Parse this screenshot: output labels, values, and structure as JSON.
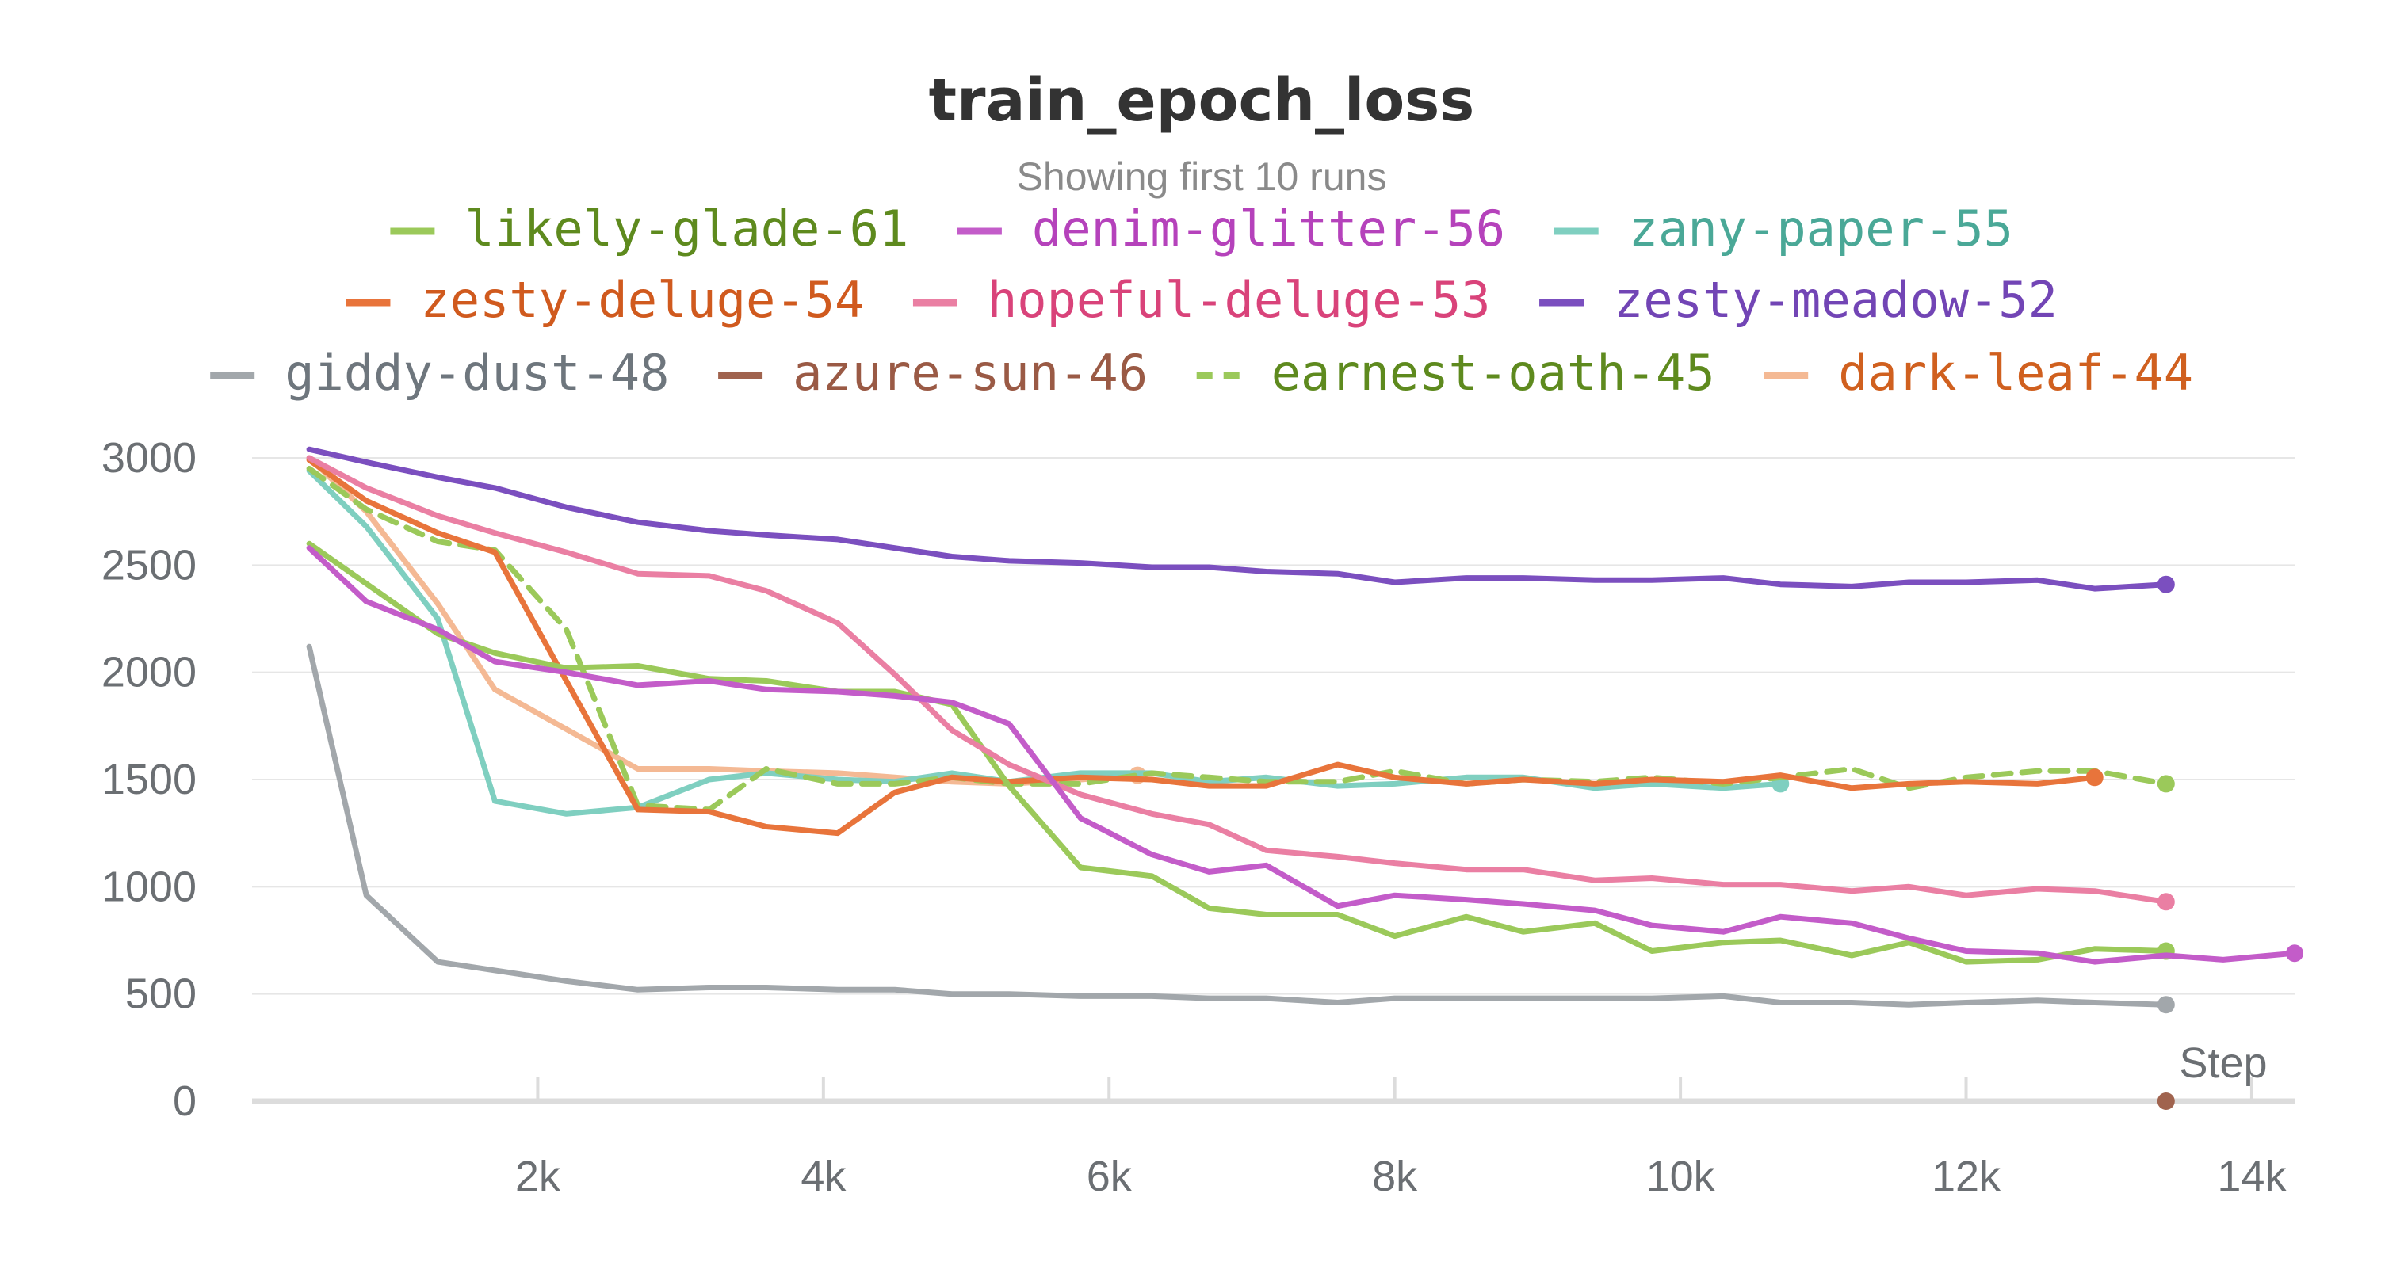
{
  "chart_data": {
    "type": "line",
    "title": "train_epoch_loss",
    "subtitle": "Showing first 10 runs",
    "xlabel": "Step",
    "ylabel": "",
    "xlim": [
      0,
      14300
    ],
    "ylim": [
      0,
      3000
    ],
    "x_ticks": [
      "2k",
      "4k",
      "6k",
      "8k",
      "10k",
      "12k",
      "14k"
    ],
    "x_tick_values": [
      2000,
      4000,
      6000,
      8000,
      10000,
      12000,
      14000
    ],
    "y_ticks": [
      "0",
      "500",
      "1000",
      "1500",
      "2000",
      "2500",
      "3000"
    ],
    "y_tick_values": [
      0,
      500,
      1000,
      1500,
      2000,
      2500,
      3000
    ],
    "grid": true,
    "legend_placement": "top",
    "series": [
      {
        "name": "likely-glade-61",
        "color": "#9bc95a",
        "text_color": "#5e8a1e",
        "dash": false,
        "end_marker": true,
        "x": [
          400,
          1300,
          1700,
          2200,
          2700,
          3200,
          3600,
          4100,
          4500,
          4900,
          5300,
          5800,
          6300,
          6700,
          7100,
          7600,
          8000,
          8500,
          8900,
          9400,
          9800,
          10300,
          10700,
          11200,
          11600,
          12000,
          12500,
          12900,
          13400
        ],
        "y": [
          2600,
          2180,
          2090,
          2020,
          2030,
          1970,
          1960,
          1910,
          1910,
          1850,
          1470,
          1090,
          1050,
          900,
          870,
          870,
          770,
          860,
          790,
          830,
          700,
          740,
          750,
          680,
          740,
          650,
          660,
          710,
          700
        ]
      },
      {
        "name": "denim-glitter-56",
        "color": "#c35cc9",
        "text_color": "#b542bb",
        "dash": false,
        "end_marker": true,
        "x": [
          400,
          800,
          1300,
          1700,
          2200,
          2700,
          3200,
          3600,
          4100,
          4500,
          4900,
          5300,
          5800,
          6300,
          6700,
          7100,
          7600,
          8000,
          8500,
          8900,
          9400,
          9800,
          10300,
          10700,
          11200,
          11600,
          12000,
          12500,
          12900,
          13400,
          13800,
          14300
        ],
        "y": [
          2580,
          2330,
          2200,
          2050,
          2000,
          1940,
          1960,
          1920,
          1910,
          1890,
          1860,
          1760,
          1320,
          1150,
          1070,
          1100,
          910,
          960,
          940,
          920,
          890,
          820,
          790,
          860,
          830,
          760,
          700,
          690,
          650,
          680,
          660,
          690
        ]
      },
      {
        "name": "zany-paper-55",
        "color": "#7fcfc0",
        "text_color": "#4aa897",
        "dash": false,
        "end_marker": true,
        "x": [
          400,
          800,
          1300,
          1700,
          2200,
          2700,
          3200,
          3600,
          4100,
          4500,
          4900,
          5300,
          5800,
          6300,
          6700,
          7100,
          7600,
          8000,
          8500,
          8900,
          9400,
          9800,
          10300,
          10700
        ],
        "y": [
          2940,
          2680,
          2250,
          1400,
          1340,
          1370,
          1500,
          1530,
          1500,
          1490,
          1530,
          1490,
          1530,
          1530,
          1490,
          1510,
          1470,
          1480,
          1510,
          1510,
          1460,
          1480,
          1460,
          1480
        ]
      },
      {
        "name": "zesty-deluge-54",
        "color": "#e8743b",
        "text_color": "#d05a1e",
        "dash": false,
        "end_marker": true,
        "x": [
          400,
          800,
          1300,
          1700,
          2700,
          3200,
          3600,
          4100,
          4500,
          4900,
          5300,
          5800,
          6300,
          6700,
          7100,
          7600,
          8000,
          8500,
          8900,
          9400,
          9800,
          10300,
          10700,
          11200,
          11600,
          12000,
          12500,
          12900
        ],
        "y": [
          2990,
          2800,
          2650,
          2560,
          1360,
          1350,
          1280,
          1250,
          1440,
          1510,
          1490,
          1510,
          1500,
          1470,
          1470,
          1570,
          1510,
          1480,
          1500,
          1480,
          1500,
          1490,
          1520,
          1460,
          1480,
          1490,
          1480,
          1510
        ]
      },
      {
        "name": "hopeful-deluge-53",
        "color": "#ea7fa3",
        "text_color": "#d9437a",
        "dash": false,
        "end_marker": true,
        "x": [
          400,
          800,
          1300,
          1700,
          2200,
          2700,
          3200,
          3600,
          4100,
          4500,
          4900,
          5300,
          5800,
          6300,
          6700,
          7100,
          7600,
          8000,
          8500,
          8900,
          9400,
          9800,
          10300,
          10700,
          11200,
          11600,
          12000,
          12500,
          12900,
          13400
        ],
        "y": [
          3000,
          2860,
          2730,
          2650,
          2560,
          2460,
          2450,
          2380,
          2230,
          1990,
          1730,
          1570,
          1430,
          1340,
          1290,
          1170,
          1140,
          1110,
          1080,
          1080,
          1030,
          1040,
          1010,
          1010,
          980,
          1000,
          960,
          990,
          980,
          930
        ]
      },
      {
        "name": "zesty-meadow-52",
        "color": "#7b4fbf",
        "text_color": "#7245b5",
        "dash": false,
        "end_marker": true,
        "x": [
          400,
          800,
          1300,
          1700,
          2200,
          2700,
          3200,
          3600,
          4100,
          4500,
          4900,
          5300,
          5800,
          6300,
          6700,
          7100,
          7600,
          8000,
          8500,
          8900,
          9400,
          9800,
          10300,
          10700,
          11200,
          11600,
          12000,
          12500,
          12900,
          13400
        ],
        "y": [
          3040,
          2980,
          2910,
          2860,
          2770,
          2700,
          2660,
          2640,
          2620,
          2580,
          2540,
          2520,
          2510,
          2490,
          2490,
          2470,
          2460,
          2420,
          2440,
          2440,
          2430,
          2430,
          2440,
          2410,
          2400,
          2420,
          2420,
          2430,
          2390,
          2410
        ]
      },
      {
        "name": "giddy-dust-48",
        "color": "#a2a7ab",
        "text_color": "#6e767d",
        "dash": false,
        "end_marker": true,
        "x": [
          400,
          800,
          1300,
          1700,
          2200,
          2700,
          3200,
          3600,
          4100,
          4500,
          4900,
          5300,
          5800,
          6300,
          6700,
          7100,
          7600,
          8000,
          8500,
          8900,
          9400,
          9800,
          10300,
          10700,
          11200,
          11600,
          12000,
          12500,
          12900,
          13400
        ],
        "y": [
          2120,
          960,
          650,
          610,
          560,
          520,
          530,
          530,
          520,
          520,
          500,
          500,
          490,
          490,
          480,
          480,
          460,
          480,
          480,
          480,
          480,
          480,
          490,
          460,
          460,
          450,
          460,
          470,
          460,
          450
        ]
      },
      {
        "name": "azure-sun-46",
        "color": "#a0634e",
        "text_color": "#9a5a45",
        "dash": false,
        "end_marker": true,
        "x": [
          13400
        ],
        "y": [
          0
        ]
      },
      {
        "name": "earnest-oath-45",
        "color": "#9bc95a",
        "text_color": "#5e8a1e",
        "dash": true,
        "end_marker": true,
        "x": [
          400,
          800,
          1300,
          1700,
          2200,
          2700,
          3200,
          3600,
          4100,
          4500,
          4900,
          5300,
          5800,
          6300,
          6700,
          7100,
          7600,
          8000,
          8500,
          8900,
          9400,
          9800,
          10300,
          10700,
          11200,
          11600,
          12000,
          12500,
          12900,
          13400
        ],
        "y": [
          2950,
          2760,
          2610,
          2570,
          2200,
          1380,
          1360,
          1550,
          1480,
          1480,
          1510,
          1480,
          1480,
          1530,
          1510,
          1490,
          1490,
          1540,
          1480,
          1500,
          1490,
          1510,
          1480,
          1510,
          1550,
          1460,
          1510,
          1540,
          1540,
          1480
        ]
      },
      {
        "name": "dark-leaf-44",
        "color": "#f4b994",
        "text_color": "#d0601f",
        "dash": false,
        "end_marker": true,
        "x": [
          400,
          800,
          1300,
          1700,
          2700,
          3200,
          3600,
          4100,
          4500,
          4900,
          5300,
          5800,
          6200
        ],
        "y": [
          3000,
          2750,
          2320,
          1920,
          1550,
          1550,
          1540,
          1530,
          1510,
          1490,
          1480,
          1500,
          1520
        ]
      }
    ]
  }
}
